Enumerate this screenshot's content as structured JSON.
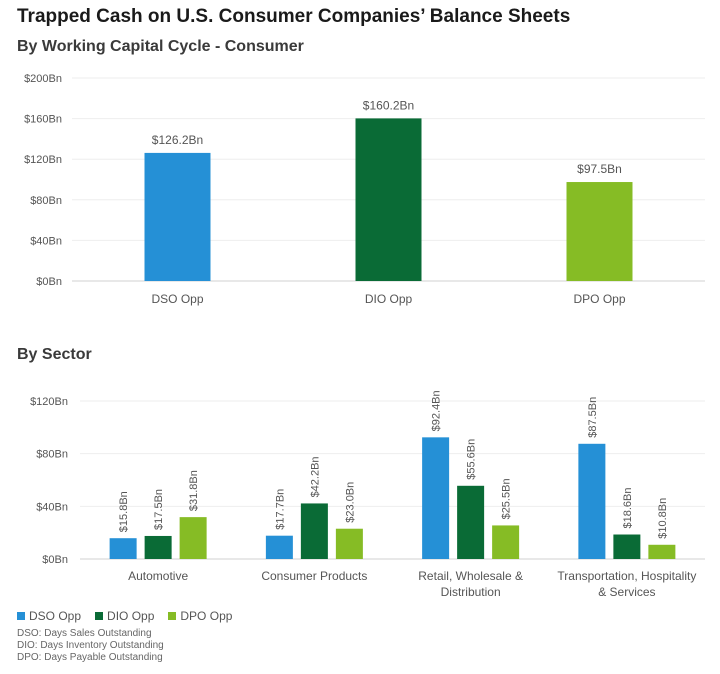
{
  "title": "Trapped Cash on U.S. Consumer Companies’ Balance Sheets",
  "colors": {
    "dso": "#2590d6",
    "dio": "#0a6b36",
    "dpo": "#86bc25",
    "grid": "#eeeeee",
    "axis": "#d0d0d0",
    "text": "#555555"
  },
  "chart_data": [
    {
      "type": "bar",
      "title": "By Working Capital Cycle - Consumer",
      "categories": [
        "DSO Opp",
        "DIO Opp",
        "DPO Opp"
      ],
      "values": [
        126.2,
        160.2,
        97.5
      ],
      "data_labels": [
        "$126.2Bn",
        "$160.2Bn",
        "$97.5Bn"
      ],
      "series_keys": [
        "dso",
        "dio",
        "dpo"
      ],
      "ylim": [
        0,
        200
      ],
      "yticks": [
        0,
        40,
        80,
        120,
        160,
        200
      ],
      "ytick_labels": [
        "$0Bn",
        "$40Bn",
        "$80Bn",
        "$120Bn",
        "$160Bn",
        "$200Bn"
      ],
      "xlabel": "",
      "ylabel": "",
      "grid": true
    },
    {
      "type": "bar",
      "title": "By Sector",
      "categories": [
        "Automotive",
        "Consumer Products",
        "Retail, Wholesale & Distribution",
        "Transportation, Hospitality & Services"
      ],
      "category_lines": [
        [
          "Automotive"
        ],
        [
          "Consumer Products"
        ],
        [
          "Retail, Wholesale &",
          "Distribution"
        ],
        [
          "Transportation, Hospitality",
          "& Services"
        ]
      ],
      "series": [
        {
          "name": "DSO Opp",
          "key": "dso",
          "values": [
            15.8,
            17.7,
            92.4,
            87.5
          ],
          "labels": [
            "$15.8Bn",
            "$17.7Bn",
            "$92.4Bn",
            "$87.5Bn"
          ]
        },
        {
          "name": "DIO Opp",
          "key": "dio",
          "values": [
            17.5,
            42.2,
            55.6,
            18.6
          ],
          "labels": [
            "$17.5Bn",
            "$42.2Bn",
            "$55.6Bn",
            "$18.6Bn"
          ]
        },
        {
          "name": "DPO Opp",
          "key": "dpo",
          "values": [
            31.8,
            23.0,
            25.5,
            10.8
          ],
          "labels": [
            "$31.8Bn",
            "$23.0Bn",
            "$25.5Bn",
            "$10.8Bn"
          ]
        }
      ],
      "ylim": [
        0,
        120
      ],
      "yticks": [
        0,
        40,
        80,
        120
      ],
      "ytick_labels": [
        "$0Bn",
        "$40Bn",
        "$80Bn",
        "$120Bn"
      ],
      "legend": "bottom-left",
      "grid": true
    }
  ],
  "legend": [
    {
      "label": "DSO Opp",
      "key": "dso"
    },
    {
      "label": "DIO Opp",
      "key": "dio"
    },
    {
      "label": "DPO Opp",
      "key": "dpo"
    }
  ],
  "notes": [
    "DSO: Days Sales Outstanding",
    "DIO: Days Inventory Outstanding",
    "DPO: Days Payable Outstanding"
  ]
}
